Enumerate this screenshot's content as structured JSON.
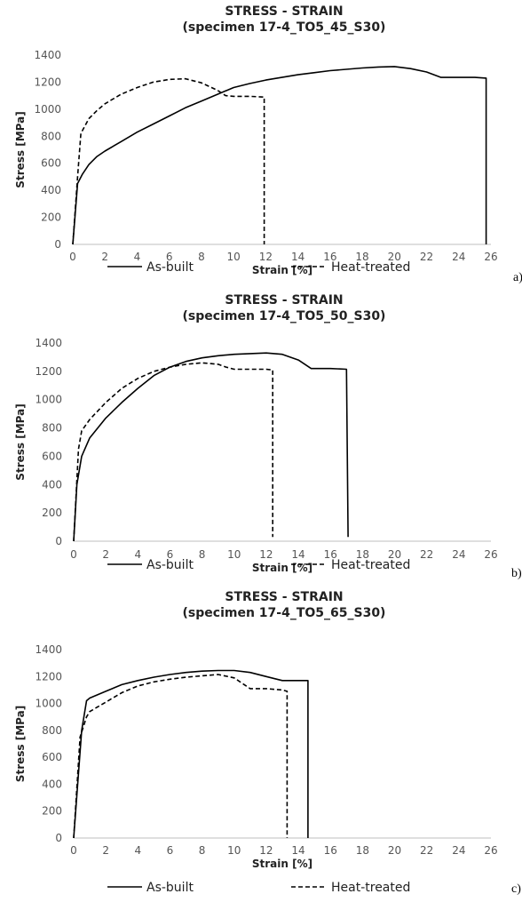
{
  "chart_data": [
    {
      "type": "line",
      "panel_letter": "a)",
      "title": "STRESS - STRAIN",
      "subtitle": "(specimen 17-4_TO5_45_S30)",
      "xlabel": "Strain [%]",
      "ylabel": "Stress [MPa]",
      "xlim": [
        0,
        26
      ],
      "ylim": [
        0,
        1400
      ],
      "xticks": [
        0,
        2,
        4,
        6,
        8,
        10,
        12,
        14,
        16,
        18,
        20,
        22,
        24,
        26
      ],
      "yticks": [
        0,
        200,
        400,
        600,
        800,
        1000,
        1200,
        1400
      ],
      "grid": false,
      "legend_position": "bottom",
      "series": [
        {
          "name": "As-built",
          "dash": "solid",
          "x": [
            0,
            0.3,
            0.6,
            1,
            1.5,
            2,
            3,
            4,
            5,
            6,
            7,
            8,
            9,
            10,
            11,
            12,
            13,
            14,
            15,
            16,
            17,
            18,
            19,
            20,
            21,
            22,
            22.9,
            24,
            25,
            25.7,
            25.7
          ],
          "y": [
            0,
            450,
            520,
            590,
            650,
            690,
            760,
            830,
            890,
            950,
            1010,
            1060,
            1110,
            1160,
            1190,
            1215,
            1235,
            1255,
            1270,
            1285,
            1295,
            1305,
            1312,
            1315,
            1300,
            1275,
            1235,
            1235,
            1235,
            1230,
            0
          ]
        },
        {
          "name": "Heat-treated",
          "dash": "dashed",
          "x": [
            0,
            0.3,
            0.5,
            1,
            1.5,
            2,
            3,
            4,
            5,
            6,
            7,
            8,
            9,
            9.5,
            10,
            11,
            11.9,
            11.9
          ],
          "y": [
            0,
            500,
            820,
            930,
            990,
            1040,
            1110,
            1160,
            1200,
            1220,
            1225,
            1195,
            1140,
            1100,
            1095,
            1095,
            1090,
            0
          ]
        }
      ]
    },
    {
      "type": "line",
      "panel_letter": "b)",
      "title": "STRESS - STRAIN",
      "subtitle": "(specimen 17-4_TO5_50_S30)",
      "xlabel": "Strain [%]",
      "ylabel": "Stress [MPa]",
      "xlim": [
        0,
        26
      ],
      "ylim": [
        0,
        1400
      ],
      "xticks": [
        0,
        2,
        4,
        6,
        8,
        10,
        12,
        14,
        16,
        18,
        20,
        22,
        24,
        26
      ],
      "yticks": [
        0,
        200,
        400,
        600,
        800,
        1000,
        1200,
        1400
      ],
      "grid": false,
      "legend_position": "bottom",
      "series": [
        {
          "name": "As-built",
          "dash": "solid",
          "x": [
            0,
            0.2,
            0.5,
            1,
            2,
            3,
            4,
            5,
            6,
            7,
            8,
            9,
            10,
            11,
            12,
            13,
            14,
            14.8,
            16,
            17,
            17.1
          ],
          "y": [
            0,
            400,
            600,
            730,
            870,
            980,
            1080,
            1170,
            1230,
            1270,
            1295,
            1310,
            1320,
            1325,
            1330,
            1320,
            1280,
            1220,
            1220,
            1215,
            30
          ]
        },
        {
          "name": "Heat-treated",
          "dash": "dashed",
          "x": [
            0,
            0.3,
            0.5,
            1,
            2,
            3,
            4,
            5,
            6,
            7,
            8,
            9,
            9.5,
            10,
            11,
            12,
            12.4,
            12.4
          ],
          "y": [
            0,
            650,
            780,
            860,
            980,
            1080,
            1150,
            1200,
            1230,
            1250,
            1260,
            1250,
            1230,
            1215,
            1215,
            1215,
            1210,
            30
          ]
        }
      ]
    },
    {
      "type": "line",
      "panel_letter": "c)",
      "title": "STRESS - STRAIN",
      "subtitle": "(specimen 17-4_TO5_65_S30)",
      "xlabel": "Strain [%]",
      "ylabel": "Stress [MPa]",
      "xlim": [
        0,
        26
      ],
      "ylim": [
        0,
        1400
      ],
      "xticks": [
        0,
        2,
        4,
        6,
        8,
        10,
        12,
        14,
        16,
        18,
        20,
        22,
        24,
        26
      ],
      "yticks": [
        0,
        200,
        400,
        600,
        800,
        1000,
        1200,
        1400
      ],
      "grid": false,
      "legend_position": "bottom",
      "series": [
        {
          "name": "As-built",
          "dash": "solid",
          "x": [
            0,
            0.5,
            0.8,
            1,
            2,
            3,
            4,
            5,
            6,
            7,
            8,
            9,
            10,
            11,
            12,
            13,
            14,
            14.6,
            14.6
          ],
          "y": [
            0,
            800,
            1020,
            1040,
            1090,
            1140,
            1170,
            1195,
            1215,
            1230,
            1240,
            1245,
            1245,
            1230,
            1200,
            1170,
            1170,
            1170,
            0
          ]
        },
        {
          "name": "Heat-treated",
          "dash": "dashed",
          "x": [
            0,
            0.4,
            0.8,
            1,
            2,
            3,
            4,
            5,
            6,
            7,
            8,
            9,
            10,
            10.5,
            11,
            12,
            13,
            13.3,
            13.3
          ],
          "y": [
            0,
            750,
            900,
            940,
            1010,
            1080,
            1130,
            1160,
            1180,
            1195,
            1205,
            1215,
            1190,
            1150,
            1110,
            1110,
            1100,
            1090,
            0
          ]
        }
      ]
    }
  ]
}
